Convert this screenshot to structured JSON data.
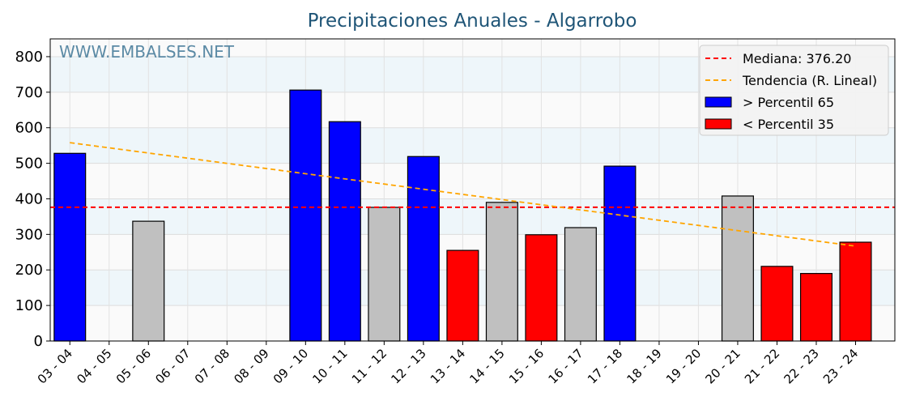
{
  "chart_data": {
    "type": "bar",
    "title": "Precipitaciones Anuales - Algarrobo",
    "watermark": "WWW.EMBALSES.NET",
    "categories": [
      "03 - 04",
      "04 - 05",
      "05 - 06",
      "06 - 07",
      "07 - 08",
      "08 - 09",
      "09 - 10",
      "10 - 11",
      "11 - 12",
      "12 - 13",
      "13 - 14",
      "14 - 15",
      "15 - 16",
      "16 - 17",
      "17 - 18",
      "18 - 19",
      "19 - 20",
      "20 - 21",
      "21 - 22",
      "22 - 23",
      "23 - 24"
    ],
    "values": [
      528,
      null,
      337,
      null,
      null,
      null,
      706,
      617,
      376,
      519,
      255,
      390,
      299,
      319,
      492,
      null,
      null,
      408,
      210,
      190,
      278
    ],
    "classes": [
      "high",
      null,
      "mid",
      null,
      null,
      null,
      "high",
      "high",
      "mid",
      "high",
      "low",
      "mid",
      "low",
      "mid",
      "high",
      null,
      null,
      "mid",
      "low",
      "low",
      "low"
    ],
    "ylim": [
      0,
      850
    ],
    "yticks": [
      0,
      100,
      200,
      300,
      400,
      500,
      600,
      700,
      800
    ],
    "median": 376.2,
    "trend": {
      "start": 558,
      "end": 267
    },
    "colors": {
      "high": "#0000ff",
      "low": "#ff0000",
      "mid": "#c0c0c0",
      "median": "#ff0000",
      "trend": "#ffa500"
    },
    "legend": {
      "position": "top-right",
      "items": [
        {
          "label": "Mediana: 376.20",
          "kind": "line",
          "color": "#ff0000"
        },
        {
          "label": "Tendencia (R. Lineal)",
          "kind": "line",
          "color": "#ffa500"
        },
        {
          "label": " > Percentil 65",
          "kind": "box",
          "color": "#0000ff"
        },
        {
          "label": " < Percentil 35",
          "kind": "box",
          "color": "#ff0000"
        }
      ]
    },
    "grid": true
  }
}
